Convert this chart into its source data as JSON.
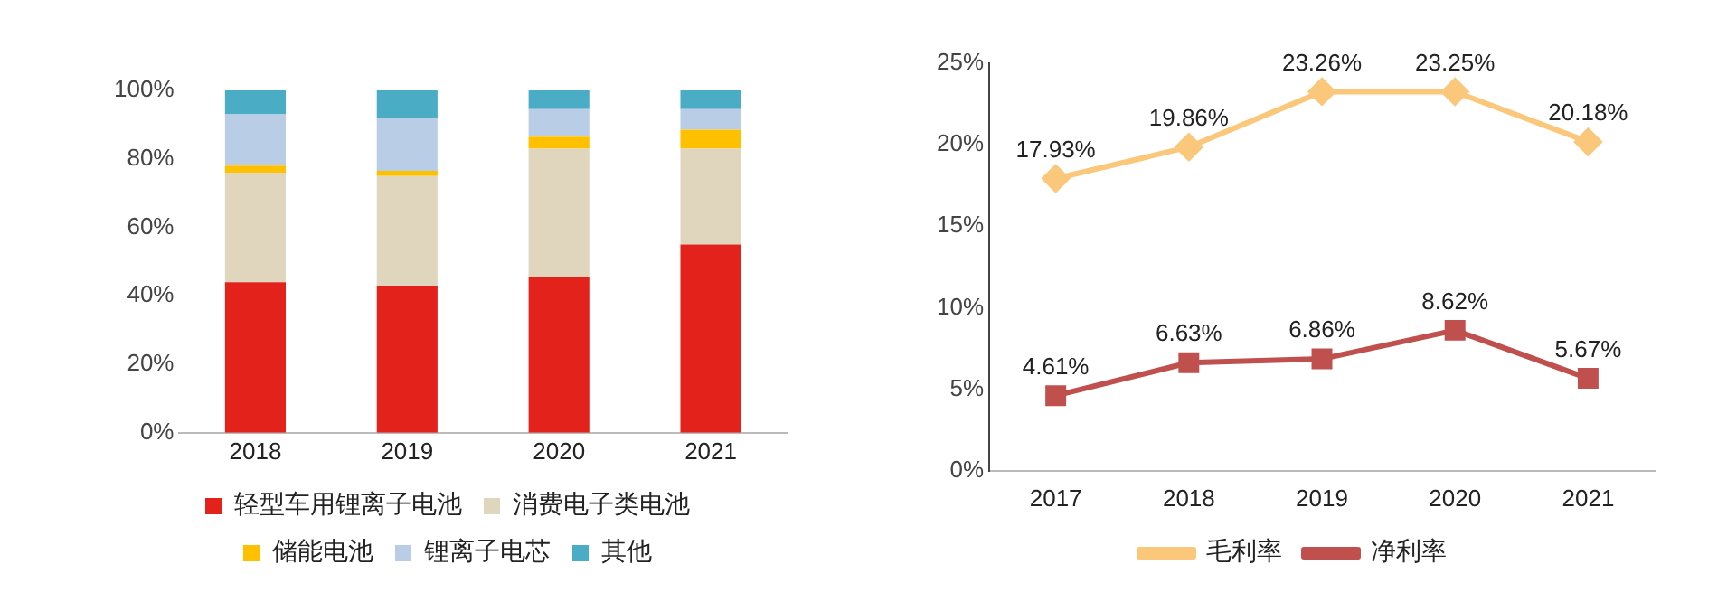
{
  "chart_data": [
    {
      "type": "bar",
      "stacked": true,
      "categories": [
        "2018",
        "2019",
        "2020",
        "2021"
      ],
      "series": [
        {
          "name": "轻型车用锂离子电池",
          "color": "#e3221b",
          "values": [
            44,
            43,
            45.5,
            55
          ]
        },
        {
          "name": "消费电子类电池",
          "color": "#dfd6bd",
          "values": [
            32,
            32,
            37.5,
            28
          ]
        },
        {
          "name": "储能电池",
          "color": "#ffc000",
          "values": [
            2,
            1.5,
            3.5,
            5.5
          ]
        },
        {
          "name": "锂离子电芯",
          "color": "#b9cde6",
          "values": [
            15,
            15.5,
            8,
            6
          ]
        },
        {
          "name": "其他",
          "color": "#4bacc6",
          "values": [
            7,
            8,
            5.5,
            5.5
          ]
        }
      ],
      "ylim": [
        0,
        100
      ],
      "yticks": [
        {
          "value": 0,
          "label": "0%"
        },
        {
          "value": 20,
          "label": "20%"
        },
        {
          "value": 40,
          "label": "40%"
        },
        {
          "value": 60,
          "label": "60%"
        },
        {
          "value": 80,
          "label": "80%"
        },
        {
          "value": 100,
          "label": "100%"
        }
      ],
      "grid": false,
      "legend": "bottom"
    },
    {
      "type": "line",
      "categories": [
        "2017",
        "2018",
        "2019",
        "2020",
        "2021"
      ],
      "series": [
        {
          "name": "毛利率",
          "color": "#fbc77b",
          "marker": "diamond",
          "values": [
            17.93,
            19.86,
            23.26,
            23.25,
            20.18
          ],
          "value_labels": [
            "17.93%",
            "19.86%",
            "23.26%",
            "23.25%",
            "20.18%"
          ]
        },
        {
          "name": "净利率",
          "color": "#c0504d",
          "marker": "square",
          "values": [
            4.61,
            6.63,
            6.86,
            8.62,
            5.67
          ],
          "value_labels": [
            "4.61%",
            "6.63%",
            "6.86%",
            "8.62%",
            "5.67%"
          ]
        }
      ],
      "ylim": [
        0,
        25
      ],
      "yticks": [
        {
          "value": 0,
          "label": "0%"
        },
        {
          "value": 5,
          "label": "5%"
        },
        {
          "value": 10,
          "label": "10%"
        },
        {
          "value": 15,
          "label": "15%"
        },
        {
          "value": 20,
          "label": "20%"
        },
        {
          "value": 25,
          "label": "25%"
        }
      ],
      "grid": false,
      "legend": "bottom"
    }
  ]
}
